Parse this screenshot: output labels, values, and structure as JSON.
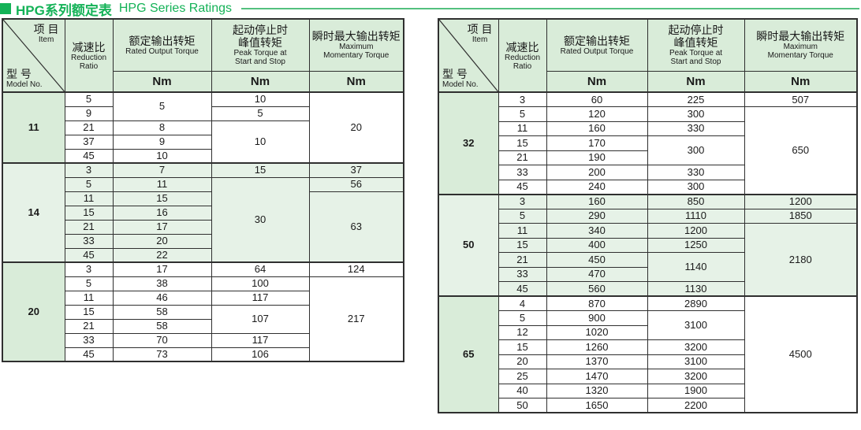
{
  "title": {
    "zh": "HPG系列额定表",
    "en": "HPG Series Ratings"
  },
  "colors": {
    "accent_green": "#14b257",
    "rule_green": "#53c07e",
    "header_bg": "#d9ecd9",
    "tinted_row_bg": "#e6f2e7",
    "border": "#2f2f2f"
  },
  "header": {
    "item_zh": "项 目",
    "item_en": "Item",
    "model_zh": "型 号",
    "model_en": "Model No.",
    "ratio_zh": "减速比",
    "ratio_en_1": "Reduction",
    "ratio_en_2": "Ratio",
    "rated_zh": "额定输出转矩",
    "rated_en": "Rated Output Torque",
    "peak_zh_1": "起动停止时",
    "peak_zh_2": "峰值转矩",
    "peak_en_1": "Peak Torque at",
    "peak_en_2": "Start and Stop",
    "max_zh": "瞬时最大输出转矩",
    "max_en_1": "Maximum",
    "max_en_2": "Momentary Torque",
    "unit": "Nm"
  },
  "tables": [
    {
      "side": "left",
      "sections": [
        {
          "model": "11",
          "tinted": false,
          "rows": [
            [
              5,
              [
                5,
                2
              ],
              10,
              [
                20,
                5
              ]
            ],
            [
              9,
              null,
              5,
              null
            ],
            [
              21,
              8,
              [
                10,
                3
              ],
              null
            ],
            [
              37,
              9,
              null,
              null
            ],
            [
              45,
              10,
              null,
              null
            ]
          ]
        },
        {
          "model": "14",
          "tinted": true,
          "rows": [
            [
              3,
              7,
              15,
              37
            ],
            [
              5,
              11,
              [
                30,
                6
              ],
              56
            ],
            [
              11,
              15,
              null,
              [
                63,
                5
              ]
            ],
            [
              15,
              16,
              null,
              null
            ],
            [
              21,
              17,
              null,
              null
            ],
            [
              33,
              20,
              null,
              null
            ],
            [
              45,
              22,
              null,
              null
            ]
          ]
        },
        {
          "model": "20",
          "tinted": false,
          "rows": [
            [
              3,
              17,
              64,
              124
            ],
            [
              5,
              38,
              100,
              [
                217,
                6
              ]
            ],
            [
              11,
              46,
              117,
              null
            ],
            [
              15,
              58,
              [
                107,
                2
              ],
              null
            ],
            [
              21,
              58,
              null,
              null
            ],
            [
              33,
              70,
              117,
              null
            ],
            [
              45,
              73,
              106,
              null
            ]
          ]
        }
      ]
    },
    {
      "side": "right",
      "sections": [
        {
          "model": "32",
          "tinted": false,
          "rows": [
            [
              3,
              60,
              225,
              507
            ],
            [
              5,
              120,
              300,
              [
                650,
                6
              ]
            ],
            [
              11,
              160,
              330,
              null
            ],
            [
              15,
              170,
              [
                300,
                2
              ],
              null
            ],
            [
              21,
              190,
              null,
              null
            ],
            [
              33,
              200,
              330,
              null
            ],
            [
              45,
              240,
              300,
              null
            ]
          ]
        },
        {
          "model": "50",
          "tinted": true,
          "rows": [
            [
              3,
              160,
              850,
              1200
            ],
            [
              5,
              290,
              1110,
              1850
            ],
            [
              11,
              340,
              1200,
              [
                2180,
                5
              ]
            ],
            [
              15,
              400,
              1250,
              null
            ],
            [
              21,
              450,
              [
                1140,
                2
              ],
              null
            ],
            [
              33,
              470,
              null,
              null
            ],
            [
              45,
              560,
              1130,
              null
            ]
          ]
        },
        {
          "model": "65",
          "tinted": false,
          "rows": [
            [
              4,
              870,
              2890,
              [
                4500,
                8
              ]
            ],
            [
              5,
              900,
              [
                3100,
                2
              ],
              null
            ],
            [
              12,
              1020,
              null,
              null
            ],
            [
              15,
              1260,
              3200,
              null
            ],
            [
              20,
              1370,
              3100,
              null
            ],
            [
              25,
              1470,
              3200,
              null
            ],
            [
              40,
              1320,
              1900,
              null
            ],
            [
              50,
              1650,
              2200,
              null
            ]
          ]
        }
      ]
    }
  ]
}
